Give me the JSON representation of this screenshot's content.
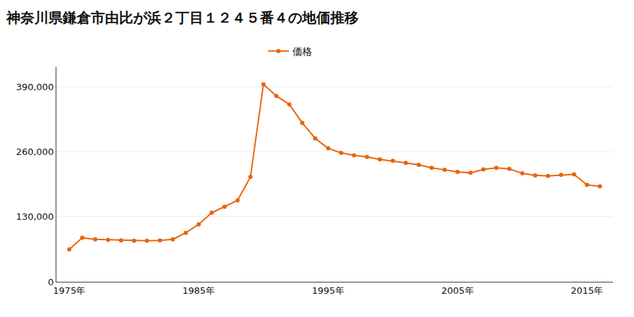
{
  "chart_data": {
    "type": "line",
    "title": "神奈川県鎌倉市由比が浜２丁目１２４５番４の地価推移",
    "x": [
      1975,
      1976,
      1977,
      1978,
      1979,
      1980,
      1981,
      1982,
      1983,
      1984,
      1985,
      1986,
      1987,
      1988,
      1989,
      1990,
      1991,
      1992,
      1993,
      1994,
      1995,
      1996,
      1997,
      1998,
      1999,
      2000,
      2001,
      2002,
      2003,
      2004,
      2005,
      2006,
      2007,
      2008,
      2009,
      2010,
      2011,
      2012,
      2013,
      2014,
      2015,
      2016
    ],
    "series": [
      {
        "name": "価格",
        "color": "#E8640A",
        "marker": "circle",
        "values": [
          65000,
          88000,
          85000,
          84000,
          83000,
          82000,
          82000,
          83000,
          85000,
          98000,
          115000,
          138000,
          150000,
          163000,
          210000,
          395000,
          372000,
          355000,
          318000,
          287000,
          267000,
          258000,
          253000,
          250000,
          245000,
          242000,
          238000,
          234000,
          228000,
          224000,
          220000,
          218000,
          225000,
          228000,
          226000,
          217000,
          213000,
          212000,
          214000,
          215000,
          194000,
          191000
        ]
      }
    ],
    "xlim": [
      1974,
      2017
    ],
    "xticks": [
      {
        "value": 1975,
        "label": "1975年"
      },
      {
        "value": 1985,
        "label": "1985年"
      },
      {
        "value": 1995,
        "label": "1995年"
      },
      {
        "value": 2005,
        "label": "2005年"
      },
      {
        "value": 2015,
        "label": "2015年"
      }
    ],
    "ylim": [
      0,
      430000
    ],
    "yticks": [
      0,
      {
        "value": 130000,
        "label": "130,000"
      },
      {
        "value": 260000,
        "label": "260,000"
      },
      {
        "value": 390000,
        "label": "390,000"
      }
    ],
    "grid": "y",
    "legend": "top"
  }
}
